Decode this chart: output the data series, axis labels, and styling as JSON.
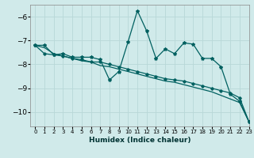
{
  "xlabel": "Humidex (Indice chaleur)",
  "bg_color": "#d0eaea",
  "grid_color": "#b8d8d8",
  "line_color": "#006060",
  "xlim": [
    -0.5,
    23
  ],
  "ylim": [
    -10.6,
    -5.5
  ],
  "yticks": [
    -10,
    -9,
    -8,
    -7,
    -6
  ],
  "xticks": [
    0,
    1,
    2,
    3,
    4,
    5,
    6,
    7,
    8,
    9,
    10,
    11,
    12,
    13,
    14,
    15,
    16,
    17,
    18,
    19,
    20,
    21,
    22,
    23
  ],
  "line1_x": [
    0,
    1,
    2,
    3,
    4,
    5,
    6,
    7,
    8,
    9,
    10,
    11,
    12,
    13,
    14,
    15,
    16,
    17,
    18,
    19,
    20,
    21,
    22,
    23
  ],
  "line1_y": [
    -7.2,
    -7.2,
    -7.6,
    -7.55,
    -7.7,
    -7.7,
    -7.7,
    -7.8,
    -8.65,
    -8.3,
    -7.05,
    -5.75,
    -6.6,
    -7.75,
    -7.35,
    -7.55,
    -7.1,
    -7.15,
    -7.75,
    -7.75,
    -8.1,
    -9.25,
    -9.55,
    -10.4
  ],
  "line2_x": [
    0,
    1,
    2,
    3,
    4,
    5,
    6,
    7,
    8,
    9,
    10,
    11,
    12,
    13,
    14,
    15,
    16,
    17,
    18,
    19,
    20,
    21,
    22,
    23
  ],
  "line2_y": [
    -7.2,
    -7.55,
    -7.6,
    -7.65,
    -7.75,
    -7.8,
    -7.9,
    -7.9,
    -8.0,
    -8.1,
    -8.2,
    -8.3,
    -8.4,
    -8.5,
    -8.6,
    -8.65,
    -8.7,
    -8.8,
    -8.9,
    -9.0,
    -9.1,
    -9.2,
    -9.4,
    -10.4
  ],
  "line3_x": [
    0,
    1,
    2,
    3,
    4,
    5,
    6,
    7,
    8,
    9,
    10,
    11,
    12,
    13,
    14,
    15,
    16,
    17,
    18,
    19,
    20,
    21,
    22,
    23
  ],
  "line3_y": [
    -7.2,
    -7.3,
    -7.55,
    -7.65,
    -7.75,
    -7.85,
    -7.9,
    -8.05,
    -8.1,
    -8.2,
    -8.3,
    -8.4,
    -8.5,
    -8.6,
    -8.7,
    -8.75,
    -8.85,
    -8.95,
    -9.05,
    -9.15,
    -9.3,
    -9.45,
    -9.6,
    -10.4
  ]
}
